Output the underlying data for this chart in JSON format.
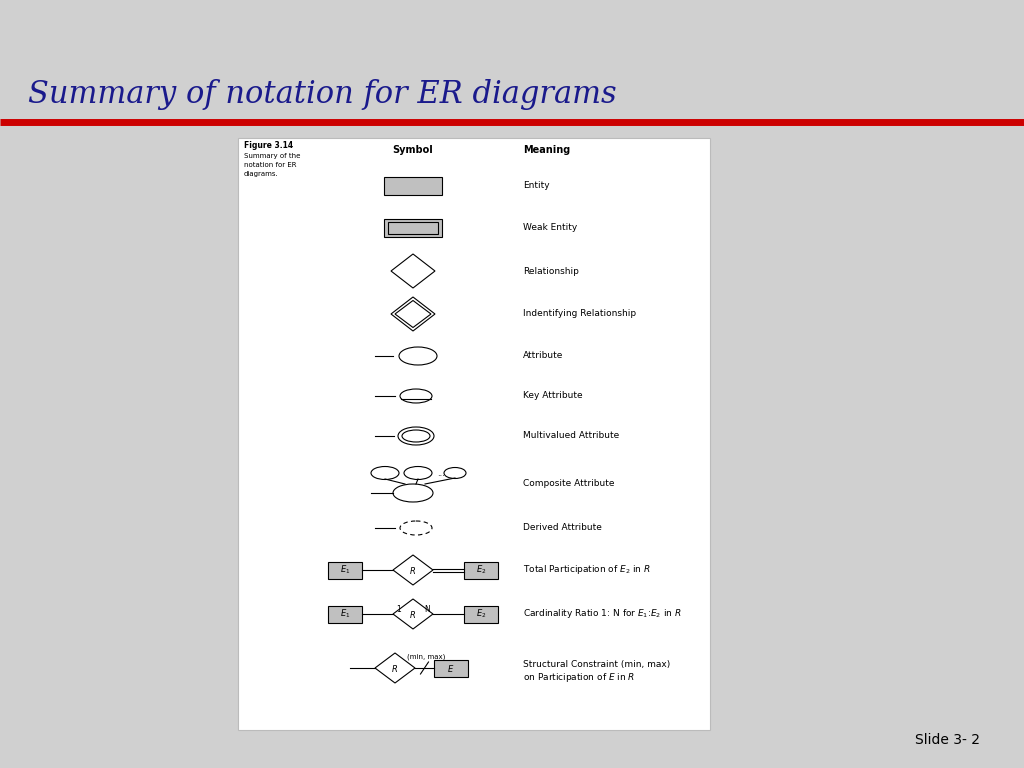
{
  "title": "Summary of notation for ER diagrams",
  "title_color": "#1a1a8c",
  "title_fontsize": 22,
  "bg_color": "#d0d0d0",
  "panel_bg": "#ffffff",
  "red_line_color": "#cc0000",
  "figure_label": "Figure 3.14",
  "col_symbol": "Symbol",
  "col_meaning": "Meaning",
  "meanings": [
    "Entity",
    "Weak Entity",
    "Relationship",
    "Indentifying Relationship",
    "Attribute",
    "Key Attribute",
    "Multivalued Attribute",
    "Composite Attribute",
    "Derived Attribute",
    "Total Participation of $E_2$ in $R$",
    "Cardinality Ratio 1: N for $E_1$:$E_2$ in $R$",
    "Structural Constraint (min, max)\non Participation of $E$ in $R$"
  ],
  "slide_number": "Slide 3- 2"
}
